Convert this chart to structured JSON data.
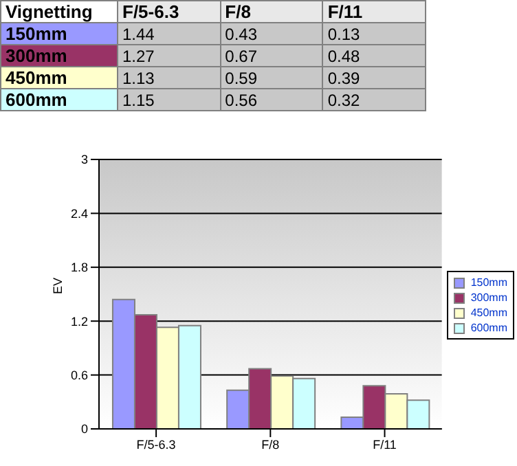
{
  "chart_data": {
    "type": "bar",
    "title": "Vignetting",
    "ylabel": "EV",
    "categories": [
      "F/5-6.3",
      "F/8",
      "F/11"
    ],
    "series": [
      {
        "name": "150mm",
        "color": "#9999ff",
        "values": [
          1.44,
          0.43,
          0.13
        ]
      },
      {
        "name": "300mm",
        "color": "#993366",
        "values": [
          1.27,
          0.67,
          0.48
        ]
      },
      {
        "name": "450mm",
        "color": "#ffffcc",
        "values": [
          1.13,
          0.59,
          0.39
        ]
      },
      {
        "name": "600mm",
        "color": "#ccffff",
        "values": [
          1.15,
          0.56,
          0.32
        ]
      }
    ],
    "ylim": [
      0,
      3
    ],
    "yticks": [
      0,
      0.6,
      1.2,
      1.8,
      2.4,
      3
    ],
    "grid": "y",
    "legend": "right",
    "data_labels": true
  }
}
